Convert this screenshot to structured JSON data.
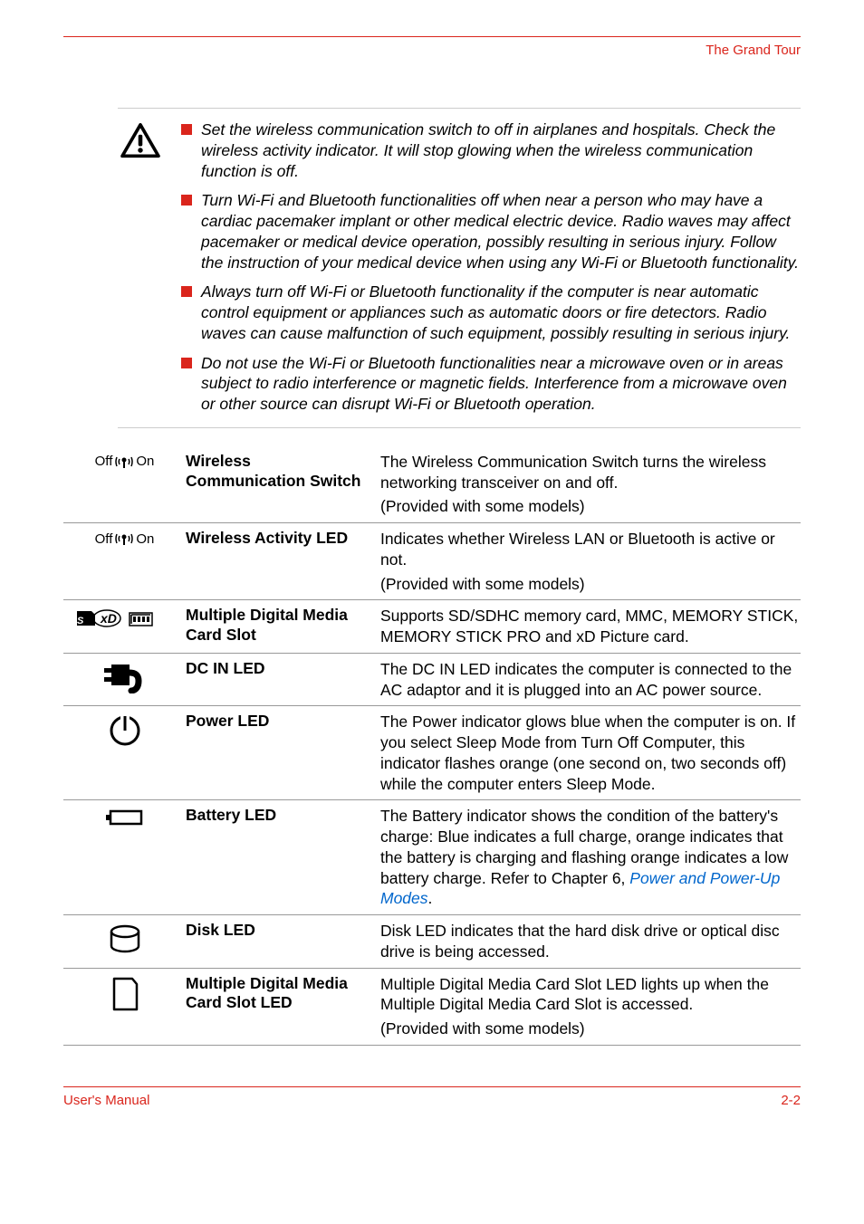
{
  "colors": {
    "accent": "#da251c",
    "link": "#0066cc",
    "divider": "#999999",
    "text": "#000000"
  },
  "header": {
    "title": "The Grand Tour"
  },
  "warnings": [
    "Set the wireless communication switch to off in airplanes and hospitals. Check the wireless activity indicator. It will stop glowing when the wireless communication function is off.",
    "Turn Wi-Fi and Bluetooth functionalities off when near a person who may have a cardiac pacemaker implant or other medical electric device. Radio waves may affect pacemaker or medical device operation, possibly resulting in serious injury. Follow the instruction of your medical device when using any Wi-Fi or Bluetooth functionality.",
    "Always turn off Wi-Fi or Bluetooth functionality if the computer is near automatic control equipment or appliances such as automatic doors or fire detectors. Radio waves can cause malfunction of such equipment, possibly resulting in serious injury.",
    "Do not use the Wi-Fi or Bluetooth functionalities near a microwave oven or in areas subject to radio interference or magnetic fields. Interference from a microwave oven or other source can disrupt Wi-Fi or Bluetooth operation."
  ],
  "specs": [
    {
      "icon": "wireless-switch",
      "label": "Wireless Communication Switch",
      "desc": [
        "The Wireless Communication Switch turns the wireless networking transceiver on and off.",
        "(Provided with some models)"
      ]
    },
    {
      "icon": "wireless-switch",
      "label": "Wireless Activity LED",
      "desc": [
        "Indicates whether Wireless LAN or Bluetooth is active or not.",
        "(Provided with some models)"
      ]
    },
    {
      "icon": "media-slot",
      "label": "Multiple Digital Media Card Slot",
      "desc": [
        "Supports SD/SDHC memory card, MMC, MEMORY STICK, MEMORY STICK PRO and xD Picture card."
      ]
    },
    {
      "icon": "dc-in",
      "label": "DC IN LED",
      "desc": [
        "The DC IN LED indicates the computer is connected to the AC adaptor and it is plugged into an AC power source."
      ]
    },
    {
      "icon": "power",
      "label": "Power LED",
      "desc": [
        "The Power indicator glows blue when the computer is on. If you select Sleep Mode from Turn Off Computer, this indicator flashes orange (one second on, two seconds off) while the computer enters Sleep Mode."
      ]
    },
    {
      "icon": "battery",
      "label": "Battery LED",
      "desc_html": "The Battery indicator shows the condition of the battery's charge: Blue indicates a full charge, orange indicates that the battery is charging and flashing orange indicates a low battery charge. Refer to Chapter 6, <span class='link'>Power and Power-Up Modes</span>."
    },
    {
      "icon": "disk",
      "label": "Disk LED",
      "desc": [
        "Disk LED indicates that the hard disk drive or optical disc drive is being accessed."
      ]
    },
    {
      "icon": "card-led",
      "label": "Multiple Digital Media Card Slot LED",
      "desc": [
        "Multiple Digital Media Card Slot LED lights up when the Multiple Digital Media Card Slot is accessed.",
        "(Provided with some models)"
      ]
    }
  ],
  "footer": {
    "left": "User's Manual",
    "right": "2-2"
  }
}
